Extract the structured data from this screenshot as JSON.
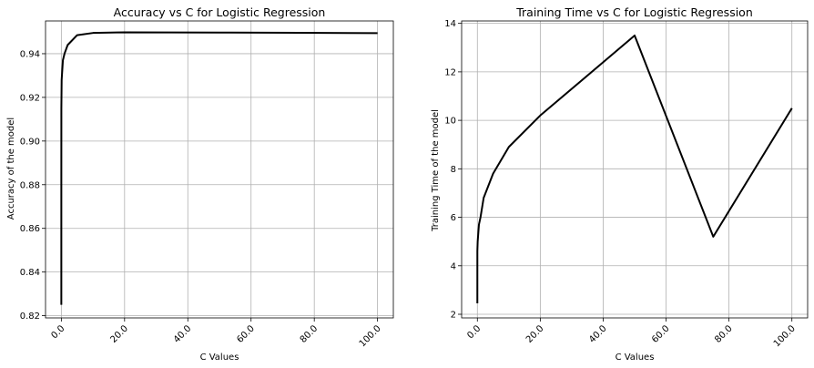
{
  "chart_data": [
    {
      "type": "line",
      "title": "Accuracy vs C for Logistic Regression",
      "xlabel": "C Values",
      "ylabel": "Accuracy of the model",
      "xlim": [
        -5,
        105
      ],
      "ylim": [
        0.819,
        0.955
      ],
      "xticks": [
        0,
        20,
        40,
        60,
        80,
        100
      ],
      "xtick_labels": [
        "0.0",
        "20.0",
        "40.0",
        "60.0",
        "80.0",
        "100.0"
      ],
      "yticks": [
        0.82,
        0.84,
        0.86,
        0.88,
        0.9,
        0.92,
        0.94
      ],
      "ytick_labels": [
        "0.82",
        "0.84",
        "0.86",
        "0.88",
        "0.90",
        "0.92",
        "0.94"
      ],
      "grid": true,
      "x": [
        0.0001,
        0.001,
        0.01,
        0.1,
        0.5,
        1,
        2,
        5,
        10,
        20,
        50,
        75,
        100
      ],
      "y": [
        0.825,
        0.88,
        0.915,
        0.928,
        0.937,
        0.94,
        0.944,
        0.9485,
        0.9495,
        0.9498,
        0.9497,
        0.9496,
        0.9494
      ]
    },
    {
      "type": "line",
      "title": "Training Time vs C for Logistic Regression",
      "xlabel": "C Values",
      "ylabel": "Training Time of the model",
      "xlim": [
        -5,
        105
      ],
      "ylim": [
        1.85,
        14.1
      ],
      "xticks": [
        0,
        20,
        40,
        60,
        80,
        100
      ],
      "xtick_labels": [
        "0.0",
        "20.0",
        "40.0",
        "60.0",
        "80.0",
        "100.0"
      ],
      "yticks": [
        2,
        4,
        6,
        8,
        10,
        12,
        14
      ],
      "ytick_labels": [
        "2",
        "4",
        "6",
        "8",
        "10",
        "12",
        "14"
      ],
      "grid": true,
      "x": [
        0.0001,
        0.001,
        0.01,
        0.1,
        0.5,
        1,
        2,
        5,
        10,
        20,
        50,
        75,
        100
      ],
      "y": [
        2.45,
        4.6,
        4.65,
        5.0,
        5.7,
        6.0,
        6.8,
        7.8,
        8.9,
        10.2,
        13.5,
        5.2,
        10.5
      ]
    }
  ]
}
